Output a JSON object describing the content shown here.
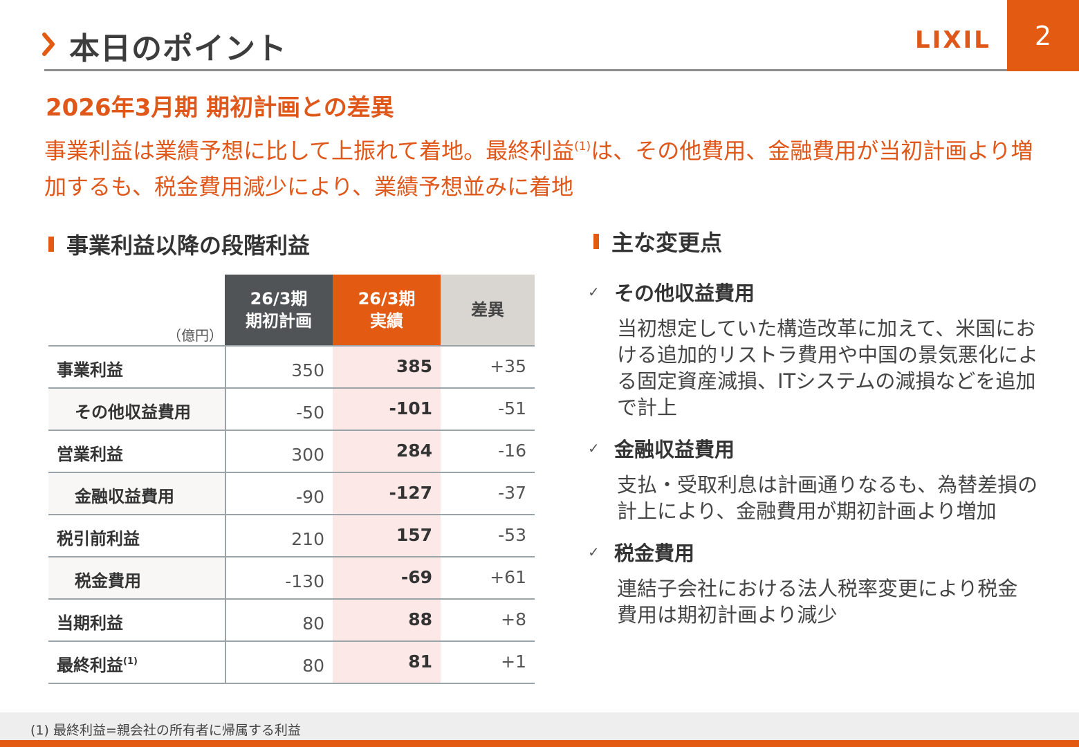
{
  "header": {
    "title": "本日のポイント",
    "logo": "LIXIL",
    "page_number": "2",
    "chevron_icon": "chevron-right-icon",
    "accent_color": "#e35a13"
  },
  "subtitle": "2026年3月期 期初計画との差異",
  "lead": {
    "part1": "事業利益は業績予想に比して上振れて着地。最終利益",
    "note_ref": "(1)",
    "part2": "は、その他費用、金融費用が当初計画より増加するも、税金費用減少により、業績予想並みに着地"
  },
  "left_section": {
    "heading": "事業利益以降の段階利益",
    "unit": "（億円）",
    "columns": {
      "plan": [
        "26/3期",
        "期初計画"
      ],
      "actual": [
        "26/3期",
        "実績"
      ],
      "diff": "差異"
    },
    "rows": [
      {
        "label": "事業利益",
        "sub": false,
        "plan": "350",
        "actual": "385",
        "diff": "+35"
      },
      {
        "label": "その他収益費用",
        "sub": true,
        "plan": "-50",
        "actual": "-101",
        "diff": "-51"
      },
      {
        "label": "営業利益",
        "sub": false,
        "plan": "300",
        "actual": "284",
        "diff": "-16"
      },
      {
        "label": "金融収益費用",
        "sub": true,
        "plan": "-90",
        "actual": "-127",
        "diff": "-37"
      },
      {
        "label": "税引前利益",
        "sub": false,
        "plan": "210",
        "actual": "157",
        "diff": "-53"
      },
      {
        "label": "税金費用",
        "sub": true,
        "plan": "-130",
        "actual": "-69",
        "diff": "+61"
      },
      {
        "label": "当期利益",
        "sub": false,
        "plan": "80",
        "actual": "88",
        "diff": "+8"
      },
      {
        "label": "最終利益",
        "note": "(1)",
        "sub": false,
        "plan": "80",
        "actual": "81",
        "diff": "+1"
      }
    ]
  },
  "right_section": {
    "heading": "主な変更点",
    "check_icon": "check-icon",
    "items": [
      {
        "title": "その他収益費用",
        "lines": [
          "当初想定していた構造改革に加えて、米国にお",
          "ける追加的リストラ費用や中国の景気悪化によ",
          "る固定資産減損、ITシステムの減損などを追加",
          "で計上"
        ]
      },
      {
        "title": "金融収益費用",
        "lines": [
          "支払・受取利息は計画通りなるも、為替差損の",
          "計上により、金融費用が期初計画より増加"
        ]
      },
      {
        "title": "税金費用",
        "lines": [
          "連結子会社における法人税率変更により税金",
          "費用は期初計画より減少"
        ]
      }
    ]
  },
  "footnote": "(1)  最終利益=親会社の所有者に帰属する利益"
}
